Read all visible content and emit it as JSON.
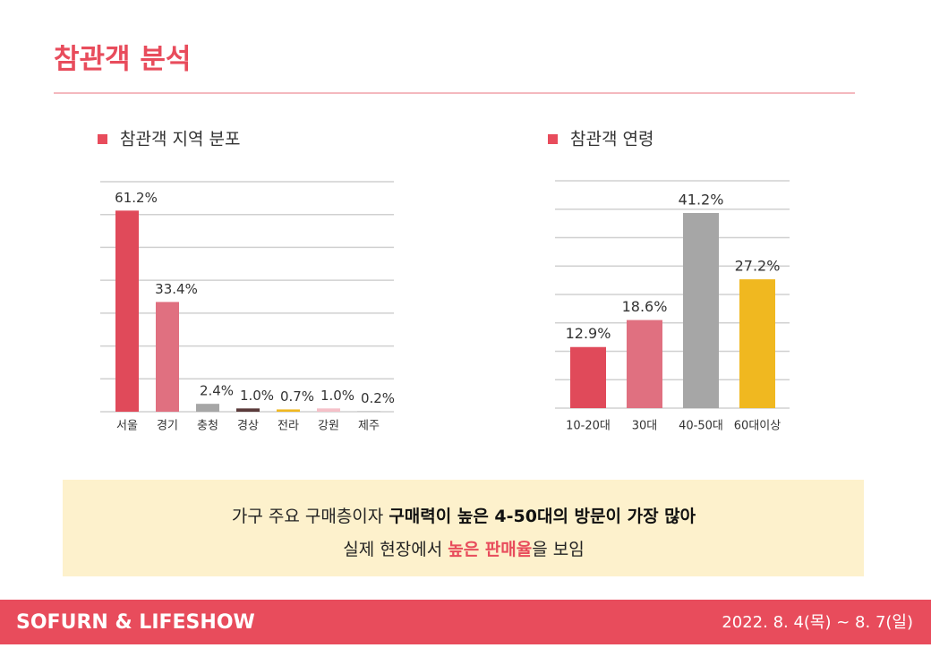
{
  "header": {
    "title": "참관객 분석"
  },
  "chart_data": [
    {
      "type": "bar",
      "title": "참관객 지역 분포",
      "categories": [
        "서울",
        "경기",
        "충청",
        "경상",
        "전라",
        "강원",
        "제주"
      ],
      "values": [
        61.2,
        33.4,
        2.4,
        1.0,
        0.7,
        1.0,
        0.2
      ],
      "value_labels": [
        "61.2%",
        "33.4%",
        "2.4%",
        "1.0%",
        "0.7%",
        "1.0%",
        "0.2%"
      ],
      "colors": [
        "#e04a5a",
        "#e07080",
        "#a6a6a6",
        "#5a3a3a",
        "#f0b820",
        "#f5c0c8",
        "#c8c8c8"
      ],
      "ylim": [
        0,
        70
      ],
      "yticks": [
        0,
        10,
        20,
        30,
        40,
        50,
        60,
        70
      ],
      "grid": true
    },
    {
      "type": "bar",
      "title": "참관객 연령",
      "categories": [
        "10-20대",
        "30대",
        "40-50대",
        "60대이상"
      ],
      "values": [
        12.9,
        18.6,
        41.2,
        27.2
      ],
      "value_labels": [
        "12.9%",
        "18.6%",
        "41.2%",
        "27.2%"
      ],
      "colors": [
        "#e04a5a",
        "#e07080",
        "#a6a6a6",
        "#f0b820"
      ],
      "ylim": [
        0,
        48
      ],
      "yticks": [
        0,
        6,
        12,
        18,
        24,
        30,
        36,
        42,
        48
      ],
      "grid": true
    }
  ],
  "callout": {
    "line1": [
      "가구 주요 구매층이자 ",
      "구매력이 높은 4-50대의 방문이 가장 많아"
    ],
    "line2": [
      "실제 현장에서 ",
      "높은 판매율",
      "을 보임"
    ]
  },
  "footer": {
    "brand": "SOFURN & LIFESHOW",
    "date": "2022. 8. 4(목) ~ 8. 7(일)"
  }
}
